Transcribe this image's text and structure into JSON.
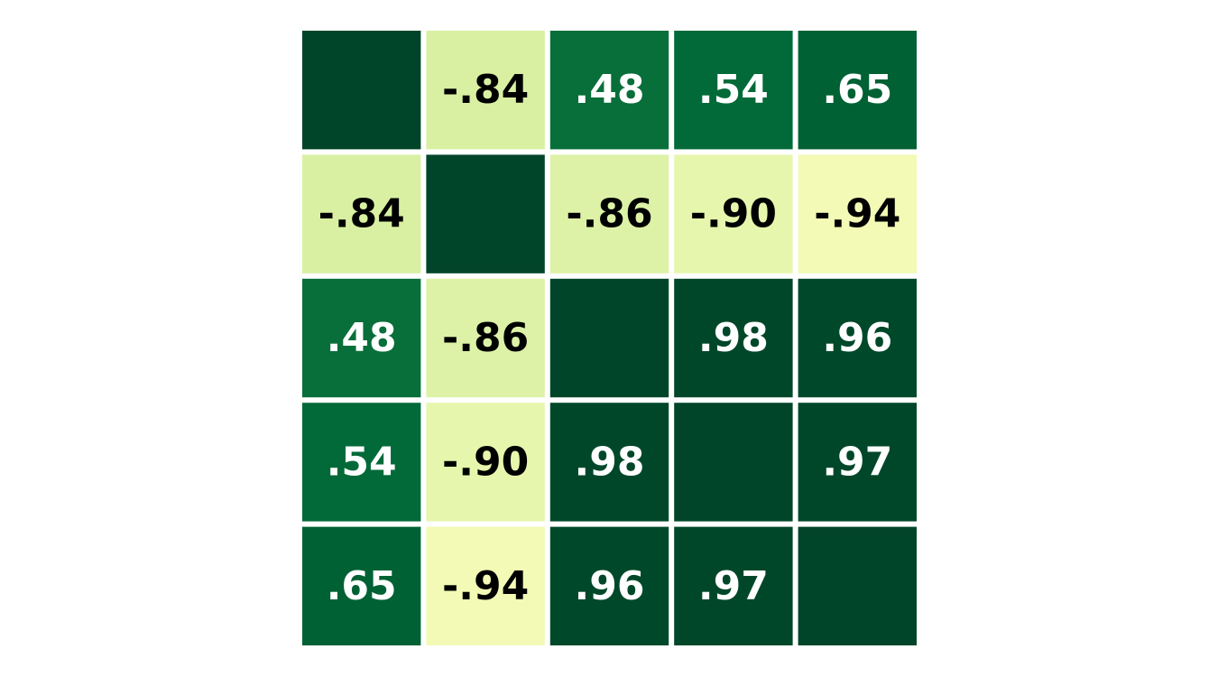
{
  "chart_data": {
    "type": "heatmap",
    "title": "",
    "xlabel": "",
    "ylabel": "",
    "colormap": "YlGn",
    "value_range": [
      -1,
      1
    ],
    "show_axes": false,
    "grid": false,
    "legend": "none",
    "diagonal_label_shown": false,
    "matrix": [
      [
        1.0,
        -0.84,
        0.48,
        0.54,
        0.65
      ],
      [
        -0.84,
        1.0,
        -0.86,
        -0.9,
        -0.94
      ],
      [
        0.48,
        -0.86,
        1.0,
        0.98,
        0.96
      ],
      [
        0.54,
        -0.9,
        0.98,
        1.0,
        0.97
      ],
      [
        0.65,
        -0.94,
        0.96,
        0.97,
        1.0
      ]
    ],
    "labels": [
      [
        "",
        "-.84",
        ".48",
        ".54",
        ".65"
      ],
      [
        "-.84",
        "",
        "-.86",
        "-.90",
        "-.94"
      ],
      [
        ".48",
        "-.86",
        "",
        ".98",
        ".96"
      ],
      [
        ".54",
        "-.90",
        ".98",
        "",
        ".97"
      ],
      [
        ".65",
        "-.94",
        ".96",
        ".97",
        ""
      ]
    ],
    "label_colors": {
      "on_dark": "#ffffff",
      "on_light": "#000000"
    }
  }
}
